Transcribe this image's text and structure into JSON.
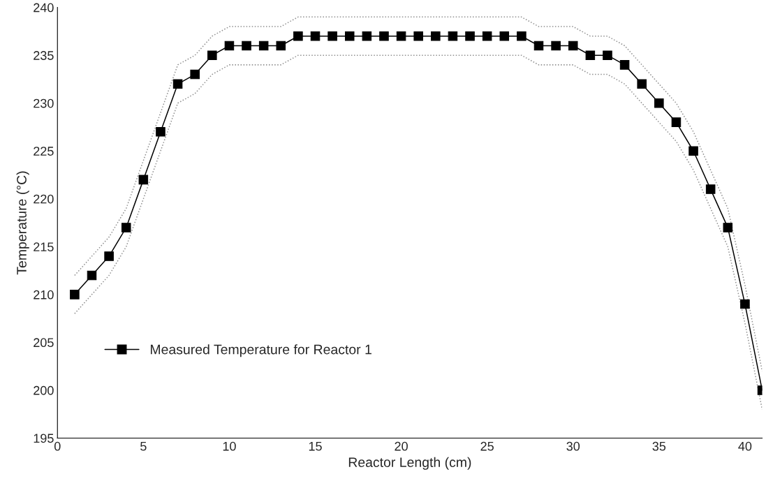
{
  "chart_data": {
    "type": "line",
    "xlabel": "Reactor Length (cm)",
    "ylabel": "Temperature (°C)",
    "x": [
      1,
      2,
      3,
      4,
      5,
      6,
      7,
      8,
      9,
      10,
      11,
      12,
      13,
      14,
      15,
      16,
      17,
      18,
      19,
      20,
      21,
      22,
      23,
      24,
      25,
      26,
      27,
      28,
      29,
      30,
      31,
      32,
      33,
      34,
      35,
      36,
      37,
      38,
      39,
      40,
      41
    ],
    "series": [
      {
        "color": "#909090",
        "line_style": "dotted",
        "marker": "none",
        "values": [
          212,
          214,
          216,
          219,
          224,
          229,
          234,
          235,
          237,
          238,
          238,
          238,
          238,
          239,
          239,
          239,
          239,
          239,
          239,
          239,
          239,
          239,
          239,
          239,
          239,
          239,
          239,
          238,
          238,
          238,
          237,
          237,
          236,
          234,
          232,
          230,
          227,
          223,
          219,
          211,
          202
        ]
      },
      {
        "color": "#909090",
        "line_style": "dotted",
        "marker": "none",
        "values": [
          208,
          210,
          212,
          215,
          220,
          225,
          230,
          231,
          233,
          234,
          234,
          234,
          234,
          235,
          235,
          235,
          235,
          235,
          235,
          235,
          235,
          235,
          235,
          235,
          235,
          235,
          235,
          234,
          234,
          234,
          233,
          233,
          232,
          230,
          228,
          226,
          223,
          219,
          215,
          207,
          198
        ]
      },
      {
        "name": "Measured Temperature for Reactor 1",
        "color": "#000000",
        "values": [
          210,
          212,
          214,
          217,
          222,
          227,
          232,
          233,
          235,
          236,
          236,
          236,
          236,
          237,
          237,
          237,
          237,
          237,
          237,
          237,
          237,
          237,
          237,
          237,
          237,
          237,
          237,
          236,
          236,
          236,
          235,
          235,
          234,
          232,
          230,
          228,
          225,
          221,
          217,
          209,
          200
        ]
      }
    ],
    "xlim": [
      0,
      41
    ],
    "xticks": [
      0,
      5,
      10,
      15,
      20,
      25,
      30,
      35,
      40
    ],
    "ylim": [
      195,
      240
    ],
    "yticks": [
      195,
      200,
      205,
      210,
      215,
      220,
      225,
      230,
      235,
      240
    ],
    "grid": false,
    "legend": "bottom left",
    "marker": "square",
    "line_style": "solid"
  }
}
